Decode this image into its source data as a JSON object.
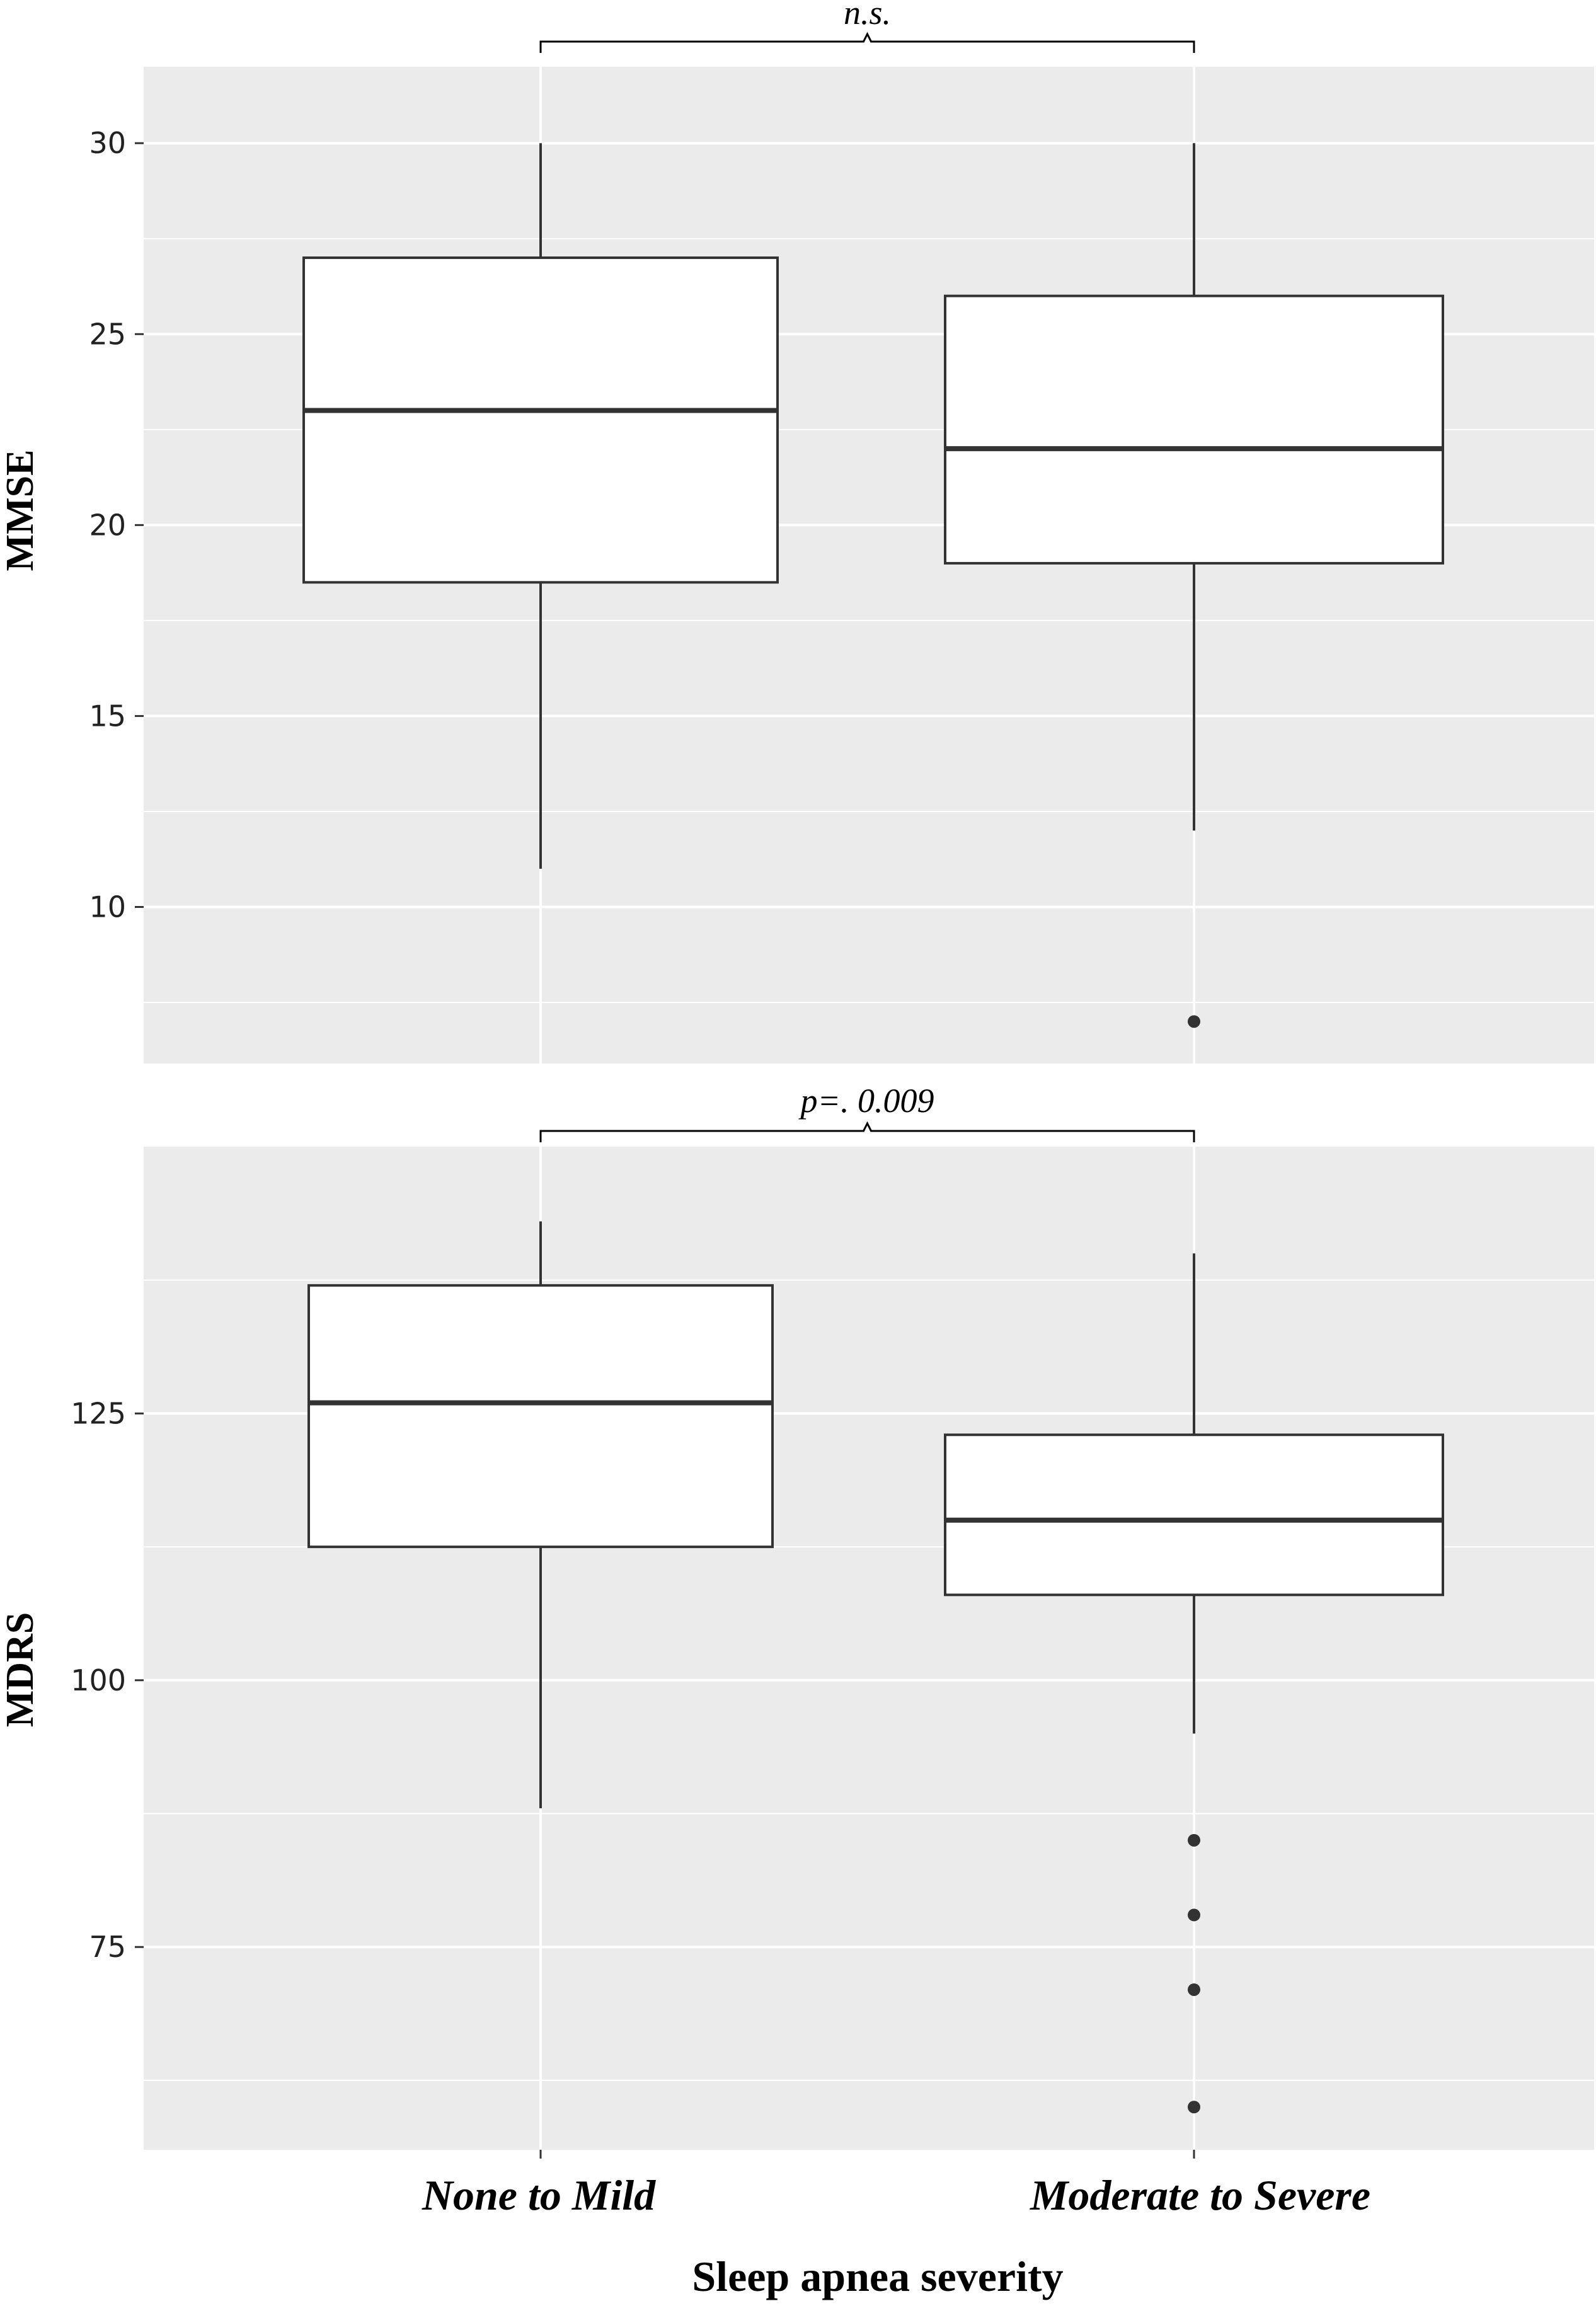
{
  "chart_data": [
    {
      "type": "box",
      "ylabel": "MMSE",
      "yticks": [
        10,
        15,
        20,
        25,
        30
      ],
      "ylim": [
        5.9,
        32.0
      ],
      "grid": true,
      "categories": [
        "None to Mild",
        "Moderate to Severe"
      ],
      "boxes": [
        {
          "category": "None to Mild",
          "whisker_low": 11,
          "q1": 18.5,
          "median": 23,
          "q3": 27,
          "whisker_high": 30,
          "outliers": []
        },
        {
          "category": "Moderate to Severe",
          "whisker_low": 12,
          "q1": 19,
          "median": 22,
          "q3": 26,
          "whisker_high": 30,
          "outliers": [
            7
          ]
        }
      ],
      "comparison": {
        "from": "None to Mild",
        "to": "Moderate to Severe",
        "label": "n.s."
      }
    },
    {
      "type": "box",
      "ylabel": "MDRS",
      "yticks": [
        75,
        100,
        125
      ],
      "ylim": [
        56.0,
        150.0
      ],
      "grid": true,
      "categories": [
        "None to Mild",
        "Moderate to Severe"
      ],
      "boxes": [
        {
          "category": "None to Mild",
          "whisker_low": 88,
          "q1": 112.5,
          "median": 126,
          "q3": 137,
          "whisker_high": 143,
          "outliers": []
        },
        {
          "category": "Moderate to Severe",
          "whisker_low": 95,
          "q1": 108,
          "median": 115,
          "q3": 123,
          "whisker_high": 140,
          "outliers": [
            85,
            78,
            71,
            60
          ]
        }
      ],
      "comparison": {
        "from": "None to Mild",
        "to": "Moderate to Severe",
        "label": "p=. 0.009"
      }
    }
  ],
  "xaxis": {
    "title": "Sleep apnea severity",
    "categories": [
      "None to Mild",
      "Moderate to Severe"
    ]
  },
  "colors": {
    "panel": "#ebebeb",
    "box_fill": "#ffffff",
    "box_stroke": "#333333",
    "grid": "#ffffff"
  }
}
